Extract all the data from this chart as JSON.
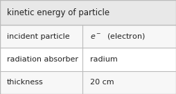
{
  "title": "kinetic energy of particle",
  "rows": [
    {
      "label": "incident particle",
      "value_type": "electron"
    },
    {
      "label": "radiation absorber",
      "value": "radium"
    },
    {
      "label": "thickness",
      "value": "20 cm"
    }
  ],
  "col_split": 0.47,
  "title_bg": "#e8e8e8",
  "row_bg": "#f7f7f7",
  "border_color": "#bbbbbb",
  "text_color": "#222222",
  "title_fontsize": 8.5,
  "row_fontsize": 8.0,
  "fig_width": 2.54,
  "fig_height": 1.36,
  "dpi": 100
}
